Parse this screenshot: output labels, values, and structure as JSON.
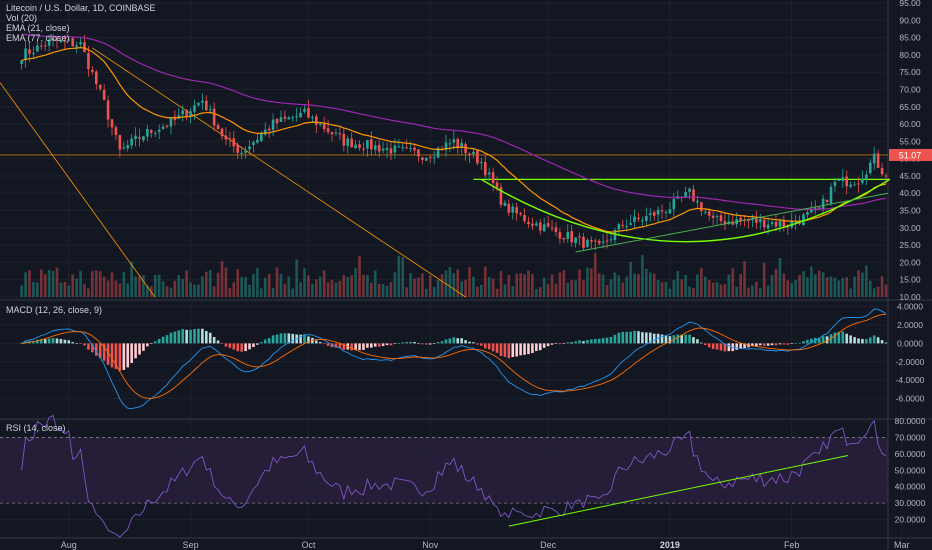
{
  "header": {
    "symbol_line": "Litecoin / U.S. Dollar, 1D, COINBASE",
    "vol_label": "Vol (20)",
    "ema_short_label": "EMA (21, close)",
    "ema_long_label": "EMA (77, close)"
  },
  "macd_panel": {
    "label": "MACD (12, 26, close, 9)"
  },
  "rsi_panel": {
    "label": "RSI (14, close)"
  },
  "colors": {
    "background": "#131722",
    "up": "#26a69a",
    "down": "#ef5350",
    "ema_short": "#ff9800",
    "ema_long": "#9c27b0",
    "trendline": "#4caf50",
    "cup": "#76ff03",
    "axis_text": "#b2b5be",
    "price_badge": "#ef5350"
  },
  "chart_data": [
    {
      "type": "candlestick",
      "title": "Litecoin / U.S. Dollar, 1D, COINBASE",
      "ylim": [
        10,
        95
      ],
      "y_ticks": [
        "95.00",
        "90.00",
        "85.00",
        "80.00",
        "75.00",
        "70.00",
        "65.00",
        "60.00",
        "55.00",
        "50.00",
        "45.00",
        "40.00",
        "35.00",
        "30.00",
        "25.00",
        "20.00",
        "15.00",
        "10.00"
      ],
      "x_ticks": [
        "Aug",
        "Sep",
        "Oct",
        "Nov",
        "Dec",
        "2019",
        "Feb",
        "Mar"
      ],
      "last_price": "51.07",
      "horizontal_level": 51.07,
      "resistance_level": 44,
      "series_names": [
        "Vol (20)",
        "EMA (21, close)",
        "EMA (77, close)"
      ],
      "approx_close_path": [
        {
          "date": "Jul 20",
          "value": 80
        },
        {
          "date": "Jul 28",
          "value": 84
        },
        {
          "date": "Aug 04",
          "value": 83
        },
        {
          "date": "Aug 10",
          "value": 66
        },
        {
          "date": "Aug 14",
          "value": 52
        },
        {
          "date": "Aug 20",
          "value": 57
        },
        {
          "date": "Aug 28",
          "value": 61
        },
        {
          "date": "Sep 04",
          "value": 67
        },
        {
          "date": "Sep 10",
          "value": 55
        },
        {
          "date": "Sep 14",
          "value": 52
        },
        {
          "date": "Sep 22",
          "value": 60
        },
        {
          "date": "Sep 30",
          "value": 63
        },
        {
          "date": "Oct 10",
          "value": 55
        },
        {
          "date": "Oct 20",
          "value": 53
        },
        {
          "date": "Oct 31",
          "value": 51
        },
        {
          "date": "Nov 07",
          "value": 55
        },
        {
          "date": "Nov 14",
          "value": 49
        },
        {
          "date": "Nov 20",
          "value": 36
        },
        {
          "date": "Nov 26",
          "value": 32
        },
        {
          "date": "Dec 07",
          "value": 27
        },
        {
          "date": "Dec 14",
          "value": 24
        },
        {
          "date": "Dec 20",
          "value": 31
        },
        {
          "date": "Dec 26",
          "value": 33
        },
        {
          "date": "Jan 01",
          "value": 36
        },
        {
          "date": "Jan 06",
          "value": 40
        },
        {
          "date": "Jan 12",
          "value": 32
        },
        {
          "date": "Jan 22",
          "value": 32
        },
        {
          "date": "Jan 31",
          "value": 31
        },
        {
          "date": "Feb 08",
          "value": 35
        },
        {
          "date": "Feb 12",
          "value": 43
        },
        {
          "date": "Feb 18",
          "value": 44
        },
        {
          "date": "Feb 22",
          "value": 50
        },
        {
          "date": "Feb 25",
          "value": 45
        }
      ]
    },
    {
      "type": "macd",
      "title": "MACD (12, 26, close, 9)",
      "ylim": [
        -8,
        4.5
      ],
      "y_ticks": [
        "4.0000",
        "2.0000",
        "0.0000",
        "-2.0000",
        "-4.0000",
        "-6.0000"
      ]
    },
    {
      "type": "rsi",
      "title": "RSI (14, close)",
      "ylim": [
        10,
        80
      ],
      "y_ticks": [
        "80.0000",
        "70.0000",
        "60.0000",
        "50.0000",
        "40.0000",
        "30.0000",
        "20.0000"
      ],
      "levels": [
        70,
        30
      ]
    }
  ]
}
